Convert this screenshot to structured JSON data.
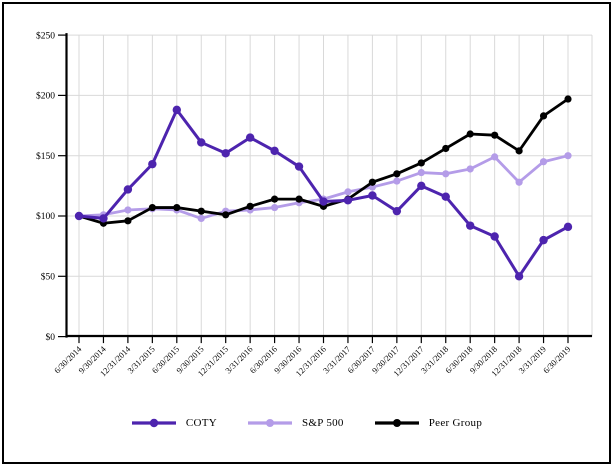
{
  "chart_data": {
    "type": "line",
    "title": "",
    "xlabel": "",
    "ylabel": "",
    "ylim": [
      0,
      250
    ],
    "y_step": 50,
    "grid": true,
    "legend_position": "bottom",
    "y_tick_labels": [
      "$0",
      "$50",
      "$100",
      "$150",
      "$200",
      "$250"
    ],
    "x_labels": [
      "6/30/2014",
      "9/30/2014",
      "12/31/2014",
      "3/31/2015",
      "6/30/2015",
      "9/30/2015",
      "12/31/2015",
      "3/31/2016",
      "6/30/2016",
      "9/30/2016",
      "12/31/2016",
      "3/31/2017",
      "6/30/2017",
      "9/30/2017",
      "12/31/2017",
      "3/31/2018",
      "6/30/2018",
      "9/30/2018",
      "12/31/2018",
      "3/31/2019",
      "6/30/2019"
    ],
    "series": [
      {
        "name": "COTY",
        "color": "#4D24AE",
        "values": [
          100,
          98,
          122,
          143,
          188,
          161,
          152,
          165,
          154,
          141,
          112,
          113,
          117,
          104,
          125,
          116,
          92,
          83,
          50,
          80,
          91
        ]
      },
      {
        "name": "S&P 500",
        "color": "#B49CE8",
        "values": [
          100,
          101,
          105,
          106,
          105,
          98,
          104,
          105,
          107,
          111,
          114,
          120,
          124,
          129,
          136,
          135,
          139,
          149,
          128,
          145,
          150
        ]
      },
      {
        "name": "Peer Group",
        "color": "#000000",
        "values": [
          100,
          94,
          96,
          107,
          107,
          104,
          101,
          108,
          114,
          114,
          108,
          114,
          128,
          135,
          144,
          156,
          168,
          167,
          154,
          183,
          197
        ]
      }
    ],
    "colors": {
      "gridline": "#D9D9D9",
      "axis": "#000000",
      "text": "#000000",
      "background": "#FFFFFF"
    }
  }
}
